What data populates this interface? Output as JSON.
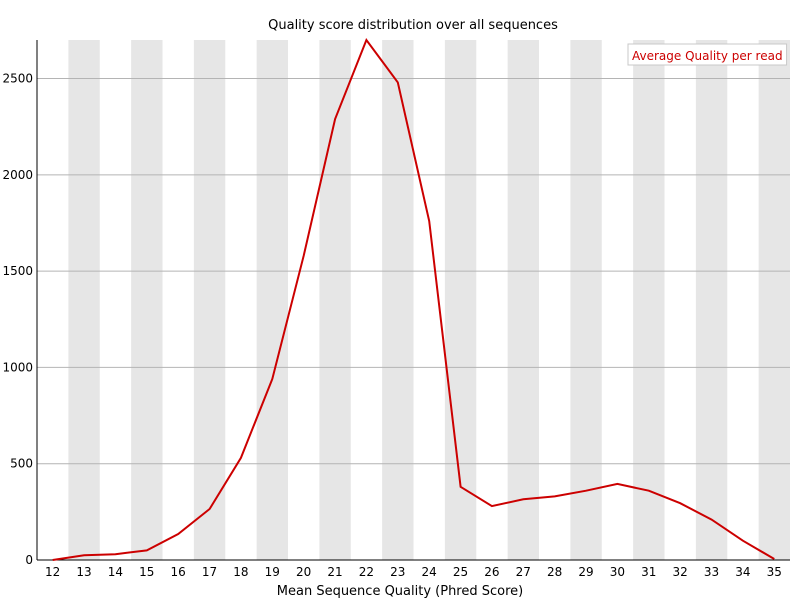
{
  "chart_data": {
    "type": "line",
    "title": "Quality score distribution over all sequences",
    "xlabel": "Mean Sequence Quality (Phred Score)",
    "ylabel": "",
    "x": [
      12,
      13,
      14,
      15,
      16,
      17,
      18,
      19,
      20,
      21,
      22,
      23,
      24,
      25,
      26,
      27,
      28,
      29,
      30,
      31,
      32,
      33,
      34,
      35
    ],
    "x_tick_labels": [
      "12",
      "13",
      "14",
      "15",
      "16",
      "17",
      "18",
      "19",
      "20",
      "21",
      "22",
      "23",
      "24",
      "25",
      "26",
      "27",
      "28",
      "29",
      "30",
      "31",
      "32",
      "33",
      "34",
      "35"
    ],
    "y_ticks": [
      0,
      500,
      1000,
      1500,
      2000,
      2500
    ],
    "y_tick_labels": [
      "0",
      "500",
      "1000",
      "1500",
      "2000",
      "2500"
    ],
    "ylim": [
      0,
      2700
    ],
    "grid": "horizontal",
    "alternating_column_shading": true,
    "series": [
      {
        "name": "Average Quality per read",
        "color": "#cc0000",
        "values": [
          0,
          25,
          30,
          50,
          135,
          265,
          530,
          940,
          1580,
          2290,
          2700,
          2480,
          1760,
          380,
          280,
          315,
          330,
          360,
          395,
          360,
          295,
          210,
          100,
          5
        ]
      }
    ],
    "legend": {
      "position": "top-right",
      "entries": [
        "Average Quality per read"
      ]
    }
  },
  "colors": {
    "line": "#cc0000",
    "shade": "#e6e6e6",
    "grid": "#b4b4b4",
    "axis": "#000000",
    "legend_border": "#c8c8c8",
    "legend_text": "#cc0000"
  }
}
